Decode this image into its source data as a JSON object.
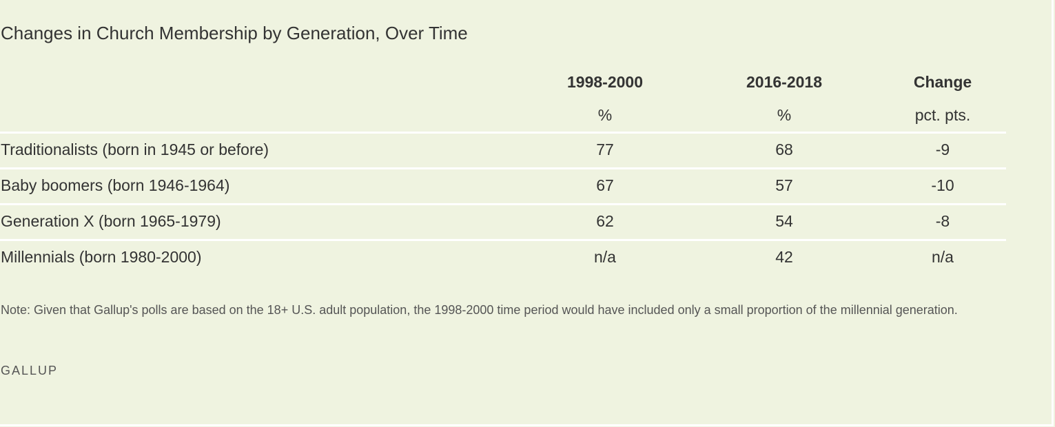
{
  "chart_data": {
    "type": "table",
    "title": "Changes in Church Membership by Generation, Over Time",
    "columns": [
      {
        "label": "1998-2000",
        "unit": "%"
      },
      {
        "label": "2016-2018",
        "unit": "%"
      },
      {
        "label": "Change",
        "unit": "pct. pts."
      }
    ],
    "rows": [
      {
        "label": "Traditionalists (born in 1945 or before)",
        "values": [
          "77",
          "68",
          "-9"
        ]
      },
      {
        "label": "Baby boomers (born 1946-1964)",
        "values": [
          "67",
          "57",
          "-10"
        ]
      },
      {
        "label": "Generation X (born 1965-1979)",
        "values": [
          "62",
          "54",
          "-8"
        ]
      },
      {
        "label": "Millennials (born 1980-2000)",
        "values": [
          "n/a",
          "42",
          "n/a"
        ]
      }
    ],
    "note": "Note: Given that Gallup's polls are based on the 18+ U.S. adult population, the 1998-2000 time period would have included only a small proportion of the millennial generation.",
    "source": "GALLUP"
  }
}
